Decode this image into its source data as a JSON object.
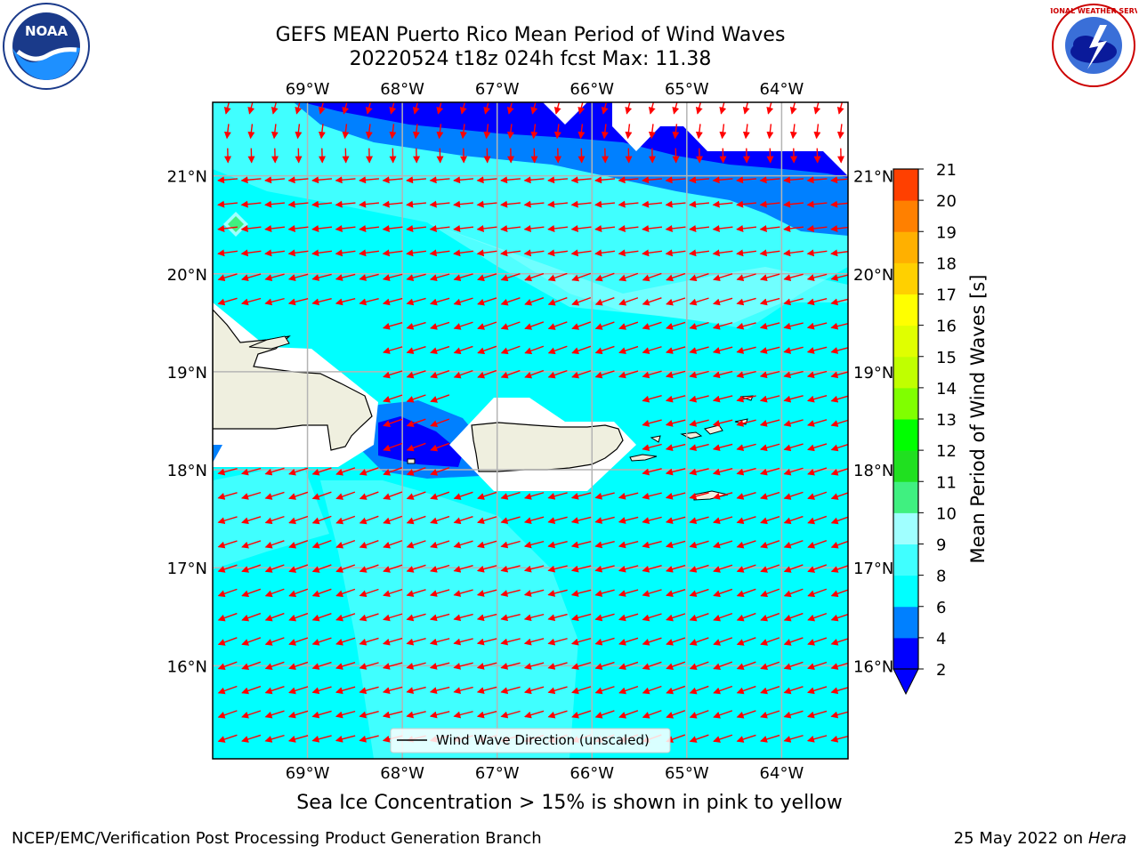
{
  "header": {
    "title_line1": "GEFS MEAN Puerto Rico Mean Period of Wind Waves",
    "title_line2": "20220524 t18z 024h fcst   Max: 11.38"
  },
  "map": {
    "lon_labels": [
      "69°W",
      "68°W",
      "67°W",
      "66°W",
      "65°W",
      "64°W"
    ],
    "lat_labels": [
      "21°N",
      "20°N",
      "19°N",
      "18°N",
      "17°N",
      "16°N"
    ],
    "lon_range": [
      -70.0,
      -63.3
    ],
    "lat_range": [
      15.05,
      21.75
    ],
    "legend_text": "Wind Wave Direction (unscaled)",
    "arrow_color": "#ff0000",
    "land_color": "#efefdf"
  },
  "colorbar": {
    "label": "Mean Period of Wind Waves [s]",
    "ticks": [
      "2",
      "4",
      "6",
      "8",
      "9",
      "10",
      "11",
      "12",
      "13",
      "14",
      "15",
      "16",
      "17",
      "18",
      "19",
      "20",
      "21"
    ],
    "colors": [
      "#0000ff",
      "#0080ff",
      "#00ffff",
      "#40ffff",
      "#a0ffff",
      "#40f080",
      "#20e020",
      "#00ff00",
      "#80ff00",
      "#c0ff00",
      "#e0ff00",
      "#ffff00",
      "#ffd000",
      "#ffb000",
      "#ff8000",
      "#ff4000",
      "#ff0000"
    ],
    "under_color": "#0000ff"
  },
  "logos": {
    "noaa_text": "NOAA",
    "nws_text": "NATIONAL WEATHER SERVICE"
  },
  "footer": {
    "caption": "Sea Ice Concentration > 15% is shown in pink to yellow",
    "left": "NCEP/EMC/Verification Post Processing Product Generation Branch",
    "right_date": "25 May 2022 on",
    "right_host": "Hera"
  }
}
